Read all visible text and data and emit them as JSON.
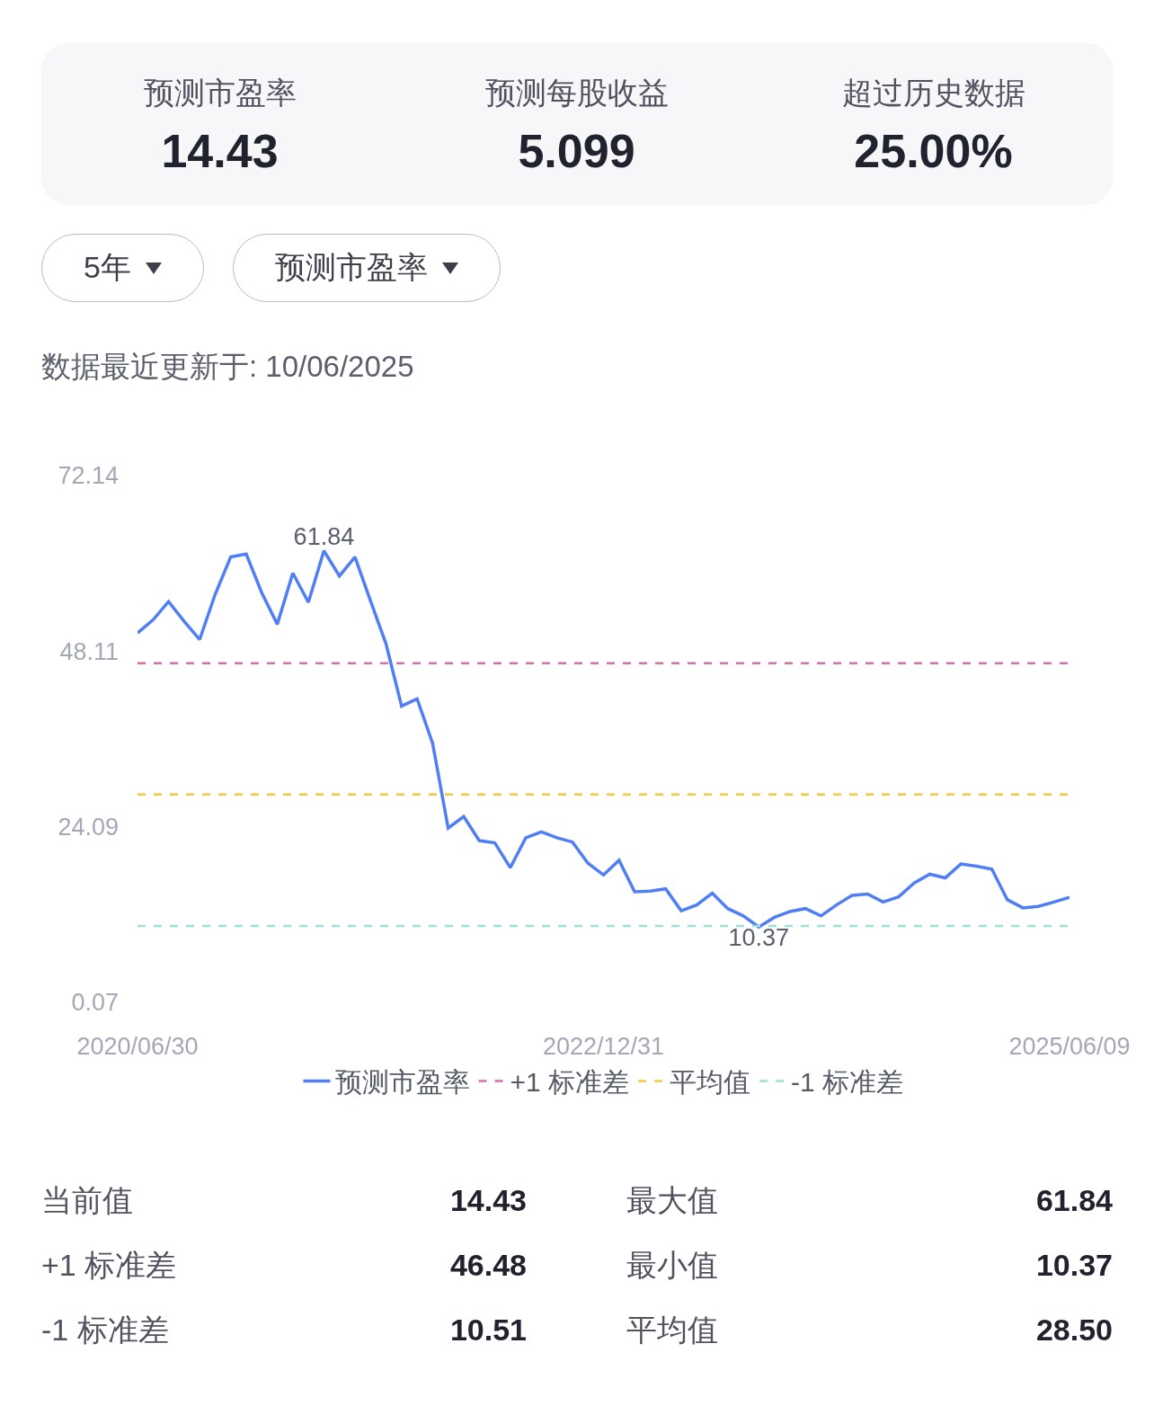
{
  "chart_data": [
    {
      "type": "other",
      "annotations": [
        "预测市盈率",
        "14.43",
        "预测每股收益",
        "5.099",
        "超过历史数据",
        "25.00%"
      ]
    },
    {
      "type": "line",
      "subtitle": "数据最近更新于: 10/06/2025",
      "annotations": [
        "5年",
        "预测市盈率"
      ],
      "categories": [
        "2020/06/30",
        null,
        null,
        null,
        null,
        null,
        null,
        null,
        null,
        null,
        null,
        null,
        null,
        null,
        null,
        null,
        null,
        null,
        null,
        null,
        null,
        null,
        null,
        null,
        null,
        null,
        null,
        null,
        null,
        null,
        "2022/12/31",
        null,
        null,
        null,
        null,
        null,
        null,
        null,
        null,
        null,
        null,
        null,
        null,
        null,
        null,
        null,
        null,
        null,
        null,
        null,
        null,
        null,
        null,
        null,
        null,
        null,
        null,
        null,
        null,
        null,
        "2025/06/09"
      ],
      "series": [
        {
          "name": "预测市盈率",
          "color": "#4f7ef5",
          "values": [
            50.6,
            52.4,
            54.9,
            52.2,
            49.7,
            55.9,
            61.0,
            61.4,
            56.1,
            51.8,
            58.8,
            54.8,
            61.84,
            58.4,
            61.0,
            55.0,
            49.1,
            40.6,
            41.6,
            35.5,
            23.9,
            25.5,
            22.2,
            21.9,
            18.5,
            22.6,
            23.4,
            22.6,
            22.0,
            19.1,
            17.5,
            19.5,
            15.2,
            15.3,
            15.6,
            12.6,
            13.4,
            15.0,
            12.9,
            11.9,
            10.37,
            11.7,
            12.5,
            12.9,
            11.9,
            13.4,
            14.7,
            14.9,
            13.8,
            14.5,
            16.4,
            17.6,
            17.1,
            19.0,
            18.7,
            18.3,
            14.1,
            13.0,
            13.2,
            13.8,
            14.43
          ],
          "value_labels": [
            null,
            null,
            null,
            null,
            null,
            null,
            null,
            null,
            null,
            null,
            null,
            null,
            "61.84",
            null,
            null,
            null,
            null,
            null,
            null,
            null,
            null,
            null,
            null,
            null,
            null,
            null,
            null,
            null,
            null,
            null,
            null,
            null,
            null,
            null,
            null,
            null,
            null,
            null,
            null,
            null,
            "10.37",
            null,
            null,
            null,
            null,
            null,
            null,
            null,
            null,
            null,
            null,
            null,
            null,
            null,
            null,
            null,
            null,
            null,
            null,
            null,
            null
          ]
        }
      ],
      "ylim": [
        0.07,
        72.14
      ],
      "yticks": [
        0.07,
        24.09,
        48.11,
        72.14
      ],
      "ref_lines": [
        {
          "axis": "y",
          "value": 46.48,
          "label": "+1 标准差",
          "color": "#d670ad",
          "line_style": "dashed"
        },
        {
          "axis": "y",
          "value": 28.5,
          "label": "平均值",
          "color": "#f5c93a",
          "line_style": "dashed"
        },
        {
          "axis": "y",
          "value": 10.51,
          "label": "-1 标准差",
          "color": "#9ddfd9",
          "line_style": "dashed"
        }
      ],
      "legend": "bottom"
    },
    {
      "type": "other",
      "annotations": [
        "当前值",
        "14.43",
        "最大值",
        "61.84",
        "+1 标准差",
        "46.48",
        "最小值",
        "10.37",
        "-1 标准差",
        "10.51",
        "平均值",
        "28.50"
      ]
    }
  ]
}
